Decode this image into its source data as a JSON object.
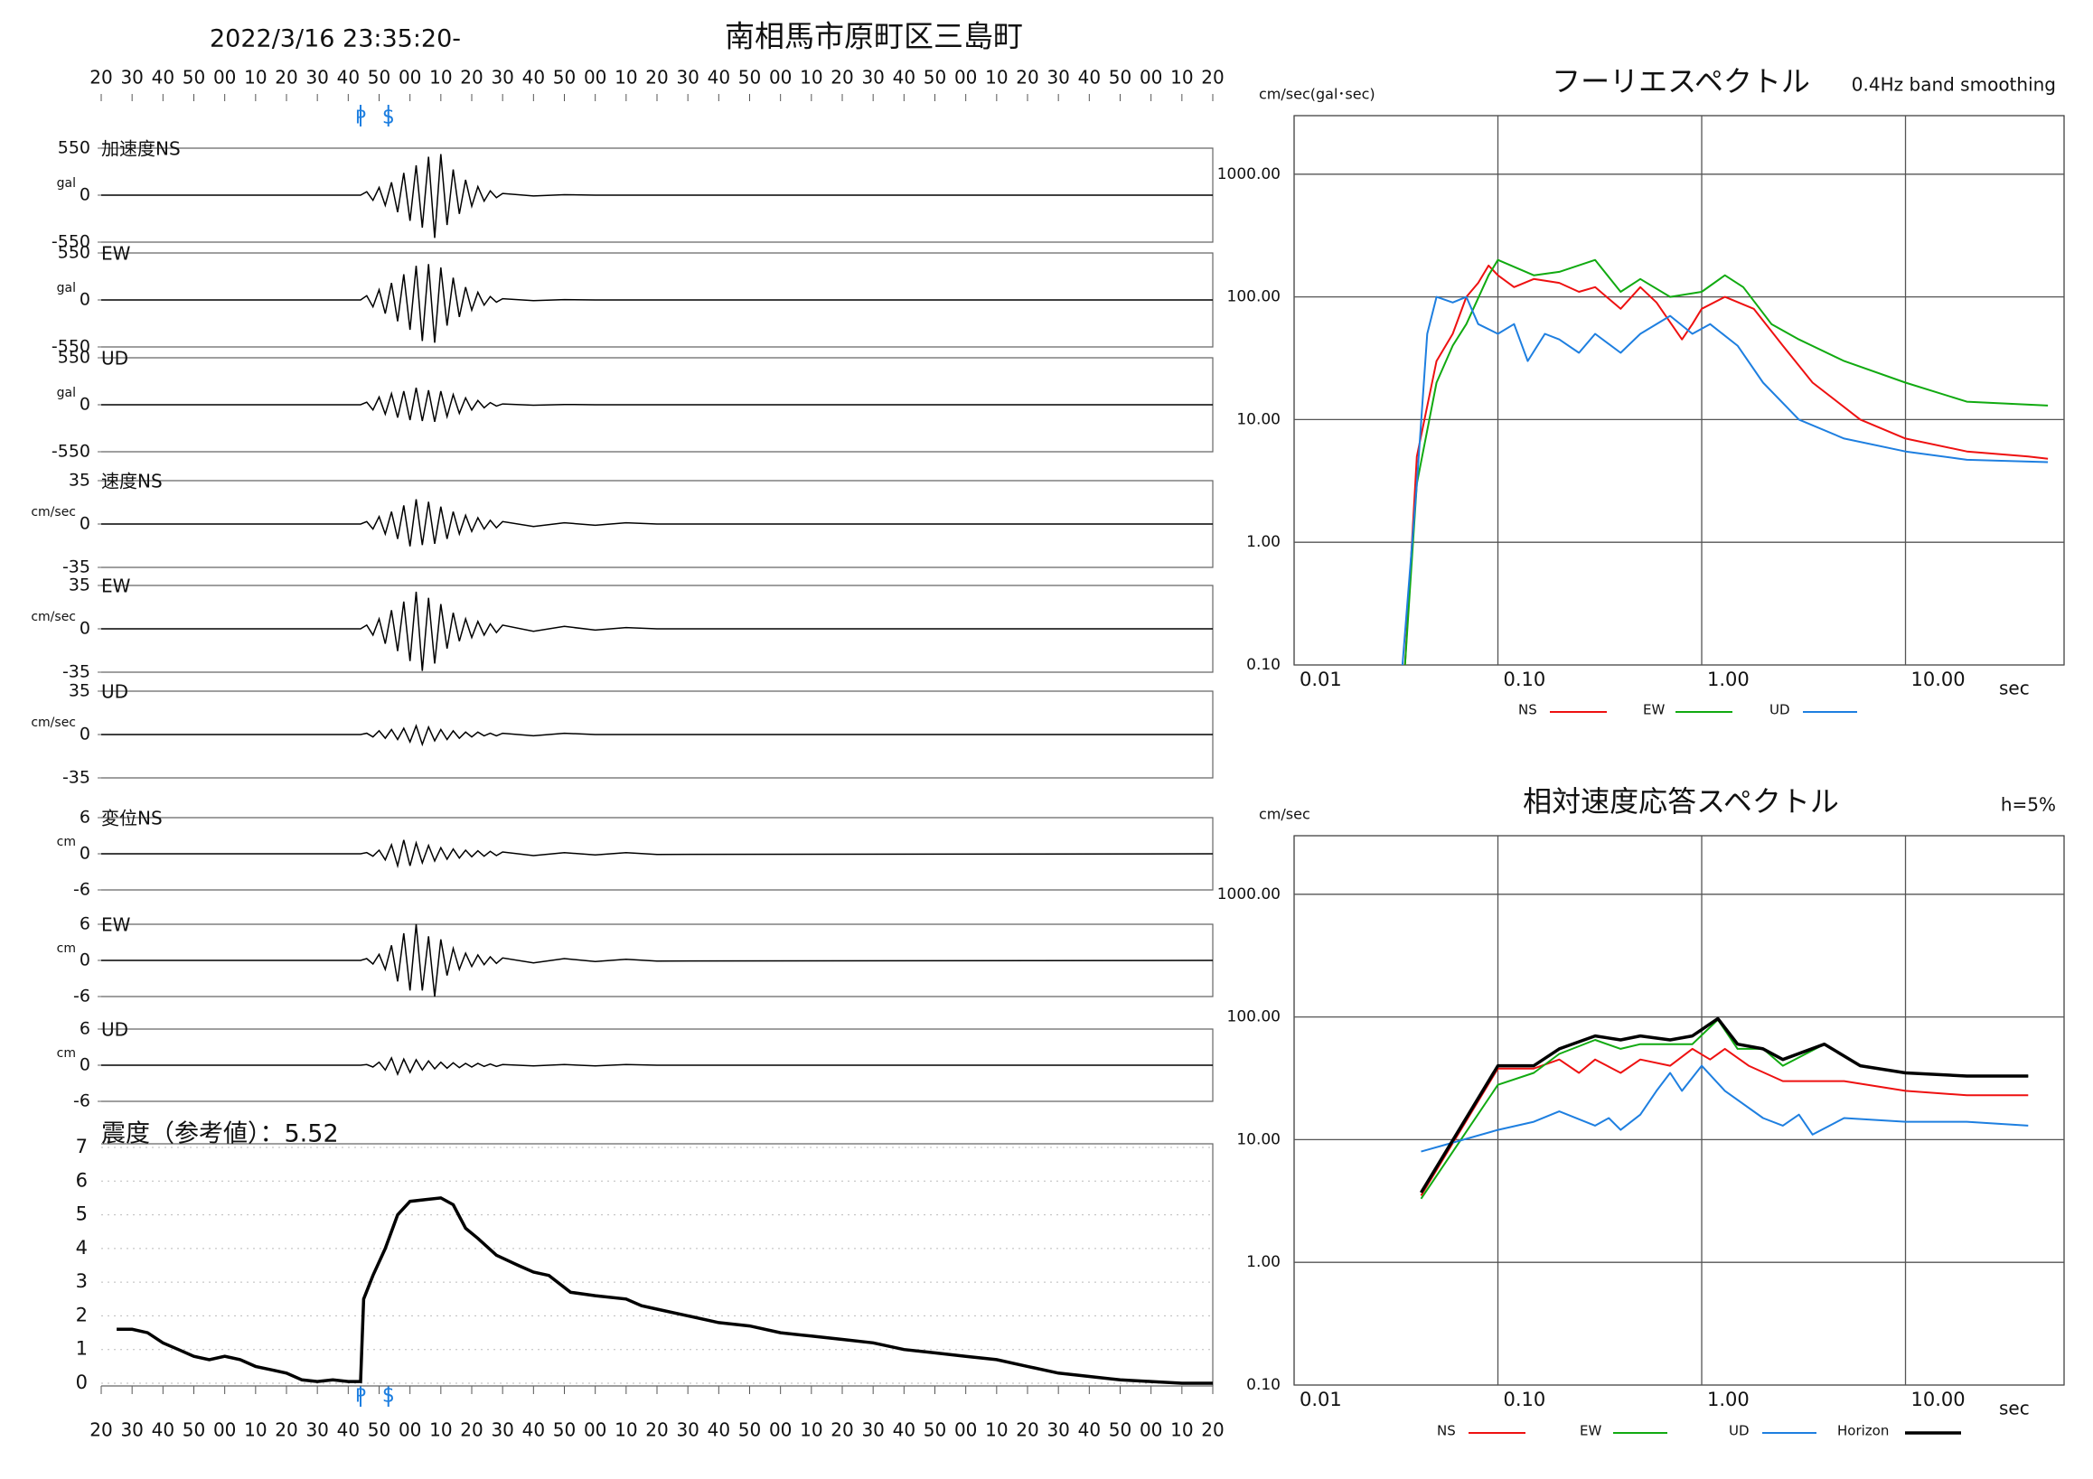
{
  "header": {
    "title": "2022/3/16 23:35:20-",
    "location": "南相馬市原町区三島町"
  },
  "chart_data": [
    {
      "type": "waveform",
      "xlim": [
        0,
        360
      ],
      "xticks": [
        {
          "value": 0,
          "label": "20"
        },
        {
          "value": 10,
          "label": "30"
        },
        {
          "value": 20,
          "label": "40"
        },
        {
          "value": 30,
          "label": "50"
        },
        {
          "value": 40,
          "label": "00"
        },
        {
          "value": 50,
          "label": "10"
        },
        {
          "value": 60,
          "label": "20"
        },
        {
          "value": 70,
          "label": "30"
        },
        {
          "value": 80,
          "label": "40"
        },
        {
          "value": 90,
          "label": "50"
        },
        {
          "value": 100,
          "label": "00"
        },
        {
          "value": 110,
          "label": "10"
        },
        {
          "value": 120,
          "label": "20"
        },
        {
          "value": 130,
          "label": "30"
        },
        {
          "value": 140,
          "label": "40"
        },
        {
          "value": 150,
          "label": "50"
        },
        {
          "value": 160,
          "label": "00"
        },
        {
          "value": 170,
          "label": "10"
        },
        {
          "value": 180,
          "label": "20"
        },
        {
          "value": 190,
          "label": "30"
        },
        {
          "value": 200,
          "label": "40"
        },
        {
          "value": 210,
          "label": "50"
        },
        {
          "value": 220,
          "label": "00"
        },
        {
          "value": 230,
          "label": "10"
        },
        {
          "value": 240,
          "label": "20"
        },
        {
          "value": 250,
          "label": "30"
        },
        {
          "value": 260,
          "label": "40"
        },
        {
          "value": 270,
          "label": "50"
        },
        {
          "value": 280,
          "label": "00"
        },
        {
          "value": 290,
          "label": "10"
        },
        {
          "value": 300,
          "label": "20"
        },
        {
          "value": 310,
          "label": "30"
        },
        {
          "value": 320,
          "label": "40"
        },
        {
          "value": 330,
          "label": "50"
        },
        {
          "value": 340,
          "label": "00"
        },
        {
          "value": 350,
          "label": "10"
        },
        {
          "value": 360,
          "label": "20"
        }
      ],
      "markers": [
        {
          "value": 84,
          "label": "P"
        },
        {
          "value": 93,
          "label": "S"
        }
      ],
      "marker_color": "#1e7fe0",
      "color": "#000000",
      "x": [
        0,
        84,
        86,
        88,
        90,
        92,
        94,
        96,
        98,
        100,
        102,
        104,
        106,
        108,
        110,
        112,
        114,
        116,
        118,
        120,
        122,
        124,
        126,
        128,
        130,
        140,
        150,
        160,
        170,
        180,
        360
      ],
      "panels": [
        {
          "label": "加速度NS",
          "unit": "gal",
          "ylim": [
            -550,
            550
          ],
          "yticks": [
            -550,
            0,
            550
          ],
          "values": [
            0,
            0,
            40,
            -60,
            90,
            -120,
            150,
            -200,
            260,
            -300,
            350,
            -380,
            450,
            -500,
            480,
            -350,
            300,
            -220,
            180,
            -130,
            100,
            -70,
            50,
            -30,
            20,
            -10,
            5,
            0,
            0,
            0,
            0
          ]
        },
        {
          "label": "EW",
          "unit": "gal",
          "ylim": [
            -550,
            550
          ],
          "yticks": [
            -550,
            0,
            550
          ],
          "values": [
            0,
            0,
            50,
            -80,
            120,
            -160,
            200,
            -250,
            300,
            -350,
            400,
            -480,
            420,
            -500,
            380,
            -300,
            260,
            -200,
            150,
            -120,
            90,
            -60,
            40,
            -25,
            15,
            -8,
            4,
            0,
            0,
            0,
            0
          ]
        },
        {
          "label": "UD",
          "unit": "gal",
          "ylim": [
            -550,
            550
          ],
          "yticks": [
            -550,
            0,
            550
          ],
          "values": [
            0,
            0,
            30,
            -60,
            90,
            -110,
            130,
            -150,
            160,
            -180,
            200,
            -190,
            170,
            -200,
            160,
            -140,
            120,
            -100,
            80,
            -60,
            50,
            -35,
            25,
            -15,
            10,
            -5,
            3,
            0,
            0,
            0,
            0
          ]
        },
        {
          "label": "速度NS",
          "unit": "cm/sec",
          "ylim": [
            -35,
            35
          ],
          "yticks": [
            -35,
            0,
            35
          ],
          "values": [
            0,
            0,
            2,
            -4,
            6,
            -8,
            10,
            -12,
            15,
            -18,
            20,
            -17,
            18,
            -16,
            14,
            -12,
            10,
            -8,
            7,
            -6,
            5,
            -4,
            3,
            -3,
            2,
            -2,
            1,
            -1,
            1,
            0,
            0
          ]
        },
        {
          "label": "EW",
          "unit": "cm/sec",
          "ylim": [
            -35,
            35
          ],
          "yticks": [
            -35,
            0,
            35
          ],
          "values": [
            0,
            0,
            3,
            -5,
            8,
            -12,
            15,
            -18,
            22,
            -26,
            30,
            -34,
            25,
            -28,
            20,
            -16,
            13,
            -10,
            8,
            -7,
            6,
            -5,
            4,
            -3,
            3,
            -2,
            2,
            -1,
            1,
            0,
            0
          ]
        },
        {
          "label": "UD",
          "unit": "cm/sec",
          "ylim": [
            -35,
            35
          ],
          "yticks": [
            -35,
            0,
            35
          ],
          "values": [
            0,
            0,
            1,
            -2,
            3,
            -3,
            4,
            -4,
            5,
            -6,
            7,
            -8,
            6,
            -5,
            4,
            -4,
            3,
            -3,
            2,
            -2,
            2,
            -1,
            1,
            -1,
            1,
            -1,
            1,
            0,
            0,
            0,
            0
          ]
        },
        {
          "label": "変位NS",
          "unit": "cm",
          "ylim": [
            -6,
            6
          ],
          "yticks": [
            -6,
            0,
            6
          ],
          "values": [
            0,
            0,
            0.2,
            -0.4,
            0.6,
            -1,
            1.5,
            -2,
            2.3,
            -2,
            1.8,
            -1.5,
            1.4,
            -1.2,
            1,
            -0.9,
            0.8,
            -0.7,
            0.6,
            -0.5,
            0.5,
            -0.4,
            0.4,
            -0.3,
            0.3,
            -0.3,
            0.2,
            -0.2,
            0.2,
            -0.1,
            0
          ]
        },
        {
          "label": "EW",
          "unit": "cm",
          "ylim": [
            -6,
            6
          ],
          "yticks": [
            -6,
            0,
            6
          ],
          "values": [
            0,
            0,
            0.3,
            -0.6,
            1,
            -1.5,
            2.5,
            -3.5,
            4.5,
            -5,
            6,
            -5,
            4,
            -6,
            3.5,
            -2.5,
            2,
            -1.5,
            1.2,
            -1,
            0.9,
            -0.7,
            0.6,
            -0.5,
            0.4,
            -0.4,
            0.3,
            -0.2,
            0.2,
            -0.1,
            0
          ]
        },
        {
          "label": "UD",
          "unit": "cm",
          "ylim": [
            -6,
            6
          ],
          "yticks": [
            -6,
            0,
            6
          ],
          "values": [
            0,
            0,
            0.1,
            -0.3,
            0.5,
            -0.8,
            1.2,
            -1.5,
            1,
            -1.2,
            0.9,
            -0.8,
            0.7,
            -0.6,
            0.5,
            -0.5,
            0.4,
            -0.4,
            0.3,
            -0.3,
            0.3,
            -0.2,
            0.2,
            -0.2,
            0.1,
            -0.1,
            0.1,
            -0.1,
            0.1,
            0,
            0
          ]
        }
      ]
    },
    {
      "type": "intensity",
      "title": "震度（参考値）：5.52",
      "ylim": [
        0,
        7
      ],
      "yticks": [
        0,
        1,
        2,
        3,
        4,
        5,
        6,
        7
      ],
      "color": "#000000",
      "x": [
        5,
        10,
        15,
        20,
        25,
        30,
        35,
        40,
        45,
        50,
        55,
        60,
        65,
        70,
        75,
        80,
        84,
        85,
        88,
        92,
        96,
        100,
        105,
        110,
        114,
        118,
        122,
        128,
        135,
        140,
        145,
        152,
        160,
        170,
        175,
        180,
        190,
        200,
        210,
        220,
        230,
        240,
        250,
        260,
        270,
        280,
        290,
        300,
        310,
        320,
        330,
        340,
        350,
        360
      ],
      "values": [
        1.6,
        1.6,
        1.5,
        1.2,
        1.0,
        0.8,
        0.7,
        0.8,
        0.7,
        0.5,
        0.4,
        0.3,
        0.1,
        0.05,
        0.1,
        0.05,
        0.05,
        2.5,
        3.2,
        4.0,
        5.0,
        5.4,
        5.45,
        5.5,
        5.3,
        4.6,
        4.3,
        3.8,
        3.5,
        3.3,
        3.2,
        2.7,
        2.6,
        2.5,
        2.3,
        2.2,
        2.0,
        1.8,
        1.7,
        1.5,
        1.4,
        1.3,
        1.2,
        1.0,
        0.9,
        0.8,
        0.7,
        0.5,
        0.3,
        0.2,
        0.1,
        0.05,
        0,
        0
      ]
    },
    {
      "type": "loglog",
      "title": "フーリエスペクトル",
      "subtitle": "0.4Hz band smoothing",
      "y_label": "cm/sec(gal･sec)",
      "x_label": "sec",
      "log_x": true,
      "log_y": true,
      "grid": true,
      "xlim": [
        0.01,
        60
      ],
      "ylim": [
        0.1,
        3000
      ],
      "xticks": [
        0.01,
        {
          "value": 0.1,
          "label": "0.10"
        },
        {
          "value": 1,
          "label": "1.00"
        },
        {
          "value": 10,
          "label": "10.00"
        }
      ],
      "yticks": [
        {
          "value": 0.1,
          "label": "0.10"
        },
        {
          "value": 1,
          "label": "1.00"
        },
        {
          "value": 10,
          "label": "10.00"
        },
        {
          "value": 100,
          "label": "100.00"
        },
        {
          "value": 1000,
          "label": "1000.00"
        }
      ],
      "series": [
        {
          "name": "NS",
          "color": "#ee1111",
          "x": [
            0.035,
            0.04,
            0.05,
            0.06,
            0.07,
            0.08,
            0.09,
            0.1,
            0.12,
            0.15,
            0.2,
            0.25,
            0.3,
            0.4,
            0.5,
            0.6,
            0.8,
            0.9,
            1.0,
            1.3,
            1.8,
            2.5,
            3.5,
            6,
            10,
            20,
            40,
            50
          ],
          "values": [
            0.1,
            5,
            30,
            50,
            100,
            130,
            180,
            150,
            120,
            140,
            130,
            110,
            120,
            80,
            120,
            90,
            45,
            60,
            80,
            100,
            80,
            40,
            20,
            10,
            7,
            5.5,
            5,
            4.8
          ]
        },
        {
          "name": "EW",
          "color": "#11aa11",
          "x": [
            0.035,
            0.04,
            0.05,
            0.06,
            0.07,
            0.09,
            0.1,
            0.15,
            0.2,
            0.3,
            0.4,
            0.5,
            0.7,
            1.0,
            1.3,
            1.6,
            2.2,
            3,
            5,
            10,
            20,
            50
          ],
          "values": [
            0.1,
            3,
            20,
            40,
            60,
            150,
            200,
            150,
            160,
            200,
            110,
            140,
            100,
            110,
            150,
            120,
            60,
            45,
            30,
            20,
            14,
            13
          ]
        },
        {
          "name": "UD",
          "color": "#1e7fe0",
          "x": [
            0.034,
            0.04,
            0.045,
            0.05,
            0.06,
            0.07,
            0.08,
            0.1,
            0.12,
            0.14,
            0.17,
            0.2,
            0.25,
            0.3,
            0.4,
            0.5,
            0.7,
            0.9,
            1.1,
            1.5,
            2,
            3,
            5,
            10,
            20,
            50
          ],
          "values": [
            0.1,
            3,
            50,
            100,
            90,
            100,
            60,
            50,
            60,
            30,
            50,
            45,
            35,
            50,
            35,
            50,
            70,
            50,
            60,
            40,
            20,
            10,
            7,
            5.5,
            4.7,
            4.5
          ]
        }
      ]
    },
    {
      "type": "loglog",
      "title": "相対速度応答スペクトル",
      "subtitle": "h=5%",
      "y_label": "cm/sec",
      "x_label": "sec",
      "log_x": true,
      "log_y": true,
      "grid": true,
      "xlim": [
        0.01,
        60
      ],
      "ylim": [
        0.1,
        3000
      ],
      "xticks": [
        0.01,
        {
          "value": 0.1,
          "label": "0.10"
        },
        {
          "value": 1,
          "label": "1.00"
        },
        {
          "value": 10,
          "label": "10.00"
        }
      ],
      "yticks": [
        {
          "value": 0.1,
          "label": "0.10"
        },
        {
          "value": 1,
          "label": "1.00"
        },
        {
          "value": 10,
          "label": "10.00"
        },
        {
          "value": 100,
          "label": "100.00"
        },
        {
          "value": 1000,
          "label": "1000.00"
        }
      ],
      "series": [
        {
          "name": "NS",
          "color": "#ee1111",
          "x": [
            0.042,
            0.1,
            0.15,
            0.2,
            0.25,
            0.3,
            0.4,
            0.5,
            0.7,
            0.9,
            1.1,
            1.3,
            1.7,
            2.5,
            3.5,
            5,
            10,
            20,
            40
          ],
          "values": [
            3.5,
            38,
            38,
            45,
            35,
            45,
            35,
            45,
            40,
            55,
            45,
            55,
            40,
            30,
            30,
            30,
            25,
            23,
            23
          ]
        },
        {
          "name": "EW",
          "color": "#11aa11",
          "x": [
            0.042,
            0.1,
            0.15,
            0.2,
            0.3,
            0.4,
            0.5,
            0.7,
            0.9,
            1.2,
            1.5,
            2,
            2.5,
            4,
            6,
            10,
            20,
            40
          ],
          "values": [
            3.3,
            28,
            35,
            50,
            65,
            55,
            60,
            60,
            60,
            95,
            55,
            55,
            40,
            60,
            40,
            35,
            33,
            33
          ]
        },
        {
          "name": "UD",
          "color": "#1e7fe0",
          "x": [
            0.042,
            0.1,
            0.15,
            0.2,
            0.3,
            0.35,
            0.4,
            0.5,
            0.6,
            0.7,
            0.8,
            1.0,
            1.3,
            2,
            2.5,
            3,
            3.5,
            5,
            10,
            20,
            40
          ],
          "values": [
            8,
            12,
            14,
            17,
            13,
            15,
            12,
            16,
            25,
            35,
            25,
            40,
            25,
            15,
            13,
            16,
            11,
            15,
            14,
            14,
            13
          ]
        },
        {
          "name": "Horizon",
          "color": "#000000",
          "x": [
            0.042,
            0.1,
            0.15,
            0.2,
            0.3,
            0.4,
            0.5,
            0.7,
            0.9,
            1.2,
            1.5,
            2,
            2.5,
            4,
            6,
            10,
            20,
            40
          ],
          "values": [
            3.7,
            40,
            40,
            55,
            70,
            65,
            70,
            65,
            70,
            97,
            60,
            55,
            45,
            60,
            40,
            35,
            33,
            33
          ]
        }
      ]
    }
  ]
}
